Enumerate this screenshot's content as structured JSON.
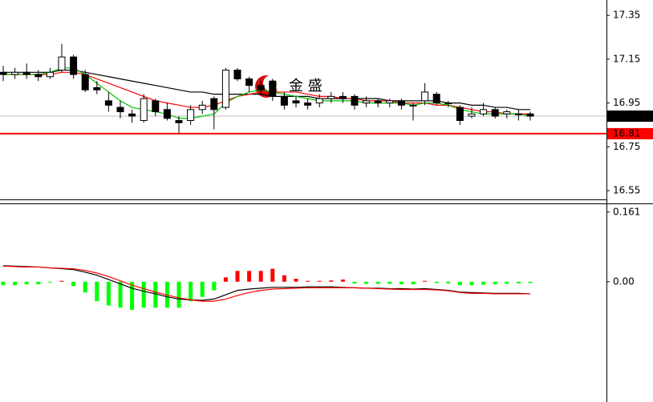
{
  "chart_data": [
    {
      "type": "candlestick",
      "open": [
        17.09,
        17.08,
        17.09,
        17.08,
        17.07,
        17.1,
        17.16,
        17.08,
        17.02,
        16.96,
        16.93,
        16.9,
        16.87,
        16.96,
        16.92,
        16.87,
        16.87,
        16.92,
        16.97,
        16.93,
        17.1,
        17.06,
        17.03,
        17.05,
        16.98,
        16.96,
        16.95,
        16.95,
        16.97,
        16.98,
        16.98,
        16.95,
        16.96,
        16.95,
        16.96,
        16.94,
        16.96,
        16.99,
        16.95,
        16.93,
        16.89,
        16.9,
        16.92,
        16.9,
        16.9,
        16.9
      ],
      "high": [
        17.12,
        17.11,
        17.13,
        17.1,
        17.11,
        17.22,
        17.17,
        17.1,
        17.05,
        17.0,
        16.96,
        16.92,
        16.99,
        16.97,
        16.95,
        16.89,
        16.94,
        16.96,
        16.98,
        17.11,
        17.11,
        17.07,
        17.05,
        17.06,
        17.0,
        16.98,
        16.97,
        16.99,
        17.0,
        17.0,
        16.99,
        16.98,
        16.97,
        16.97,
        16.97,
        16.95,
        17.04,
        17.0,
        16.96,
        16.94,
        16.93,
        16.95,
        16.93,
        16.92,
        16.92,
        16.91
      ],
      "low": [
        17.05,
        17.06,
        17.06,
        17.05,
        17.06,
        17.09,
        17.06,
        17.0,
        16.99,
        16.91,
        16.88,
        16.86,
        16.86,
        16.89,
        16.87,
        16.81,
        16.85,
        16.9,
        16.83,
        16.92,
        17.05,
        17.0,
        16.99,
        16.96,
        16.92,
        16.93,
        16.92,
        16.93,
        16.95,
        16.95,
        16.92,
        16.93,
        16.93,
        16.93,
        16.92,
        16.87,
        16.94,
        16.94,
        16.93,
        16.85,
        16.88,
        16.89,
        16.88,
        16.88,
        16.87,
        16.87
      ],
      "close": [
        17.08,
        17.09,
        17.08,
        17.07,
        17.09,
        17.16,
        17.08,
        17.01,
        17.01,
        16.94,
        16.91,
        16.89,
        16.97,
        16.91,
        16.88,
        16.86,
        16.92,
        16.94,
        16.92,
        17.1,
        17.06,
        17.03,
        17.01,
        16.98,
        16.94,
        16.95,
        16.94,
        16.97,
        16.98,
        16.97,
        16.94,
        16.96,
        16.95,
        16.96,
        16.94,
        16.94,
        17.0,
        16.95,
        16.95,
        16.87,
        16.9,
        16.92,
        16.89,
        16.91,
        16.9,
        16.89
      ],
      "up_color": "#ffffff",
      "down_color": "#000000",
      "lines": [
        {
          "color": "#000000",
          "values": [
            17.09,
            17.09,
            17.09,
            17.09,
            17.09,
            17.1,
            17.1,
            17.09,
            17.08,
            17.07,
            17.06,
            17.05,
            17.04,
            17.03,
            17.02,
            17.01,
            17.0,
            17.0,
            16.99,
            16.99,
            16.99,
            16.99,
            16.99,
            16.98,
            16.98,
            16.98,
            16.98,
            16.97,
            16.97,
            16.97,
            16.97,
            16.97,
            16.97,
            16.96,
            16.96,
            16.96,
            16.96,
            16.96,
            16.95,
            16.95,
            16.94,
            16.94,
            16.93,
            16.93,
            16.92,
            16.92
          ]
        },
        {
          "color": "#ff0000",
          "values": [
            17.08,
            17.08,
            17.08,
            17.08,
            17.08,
            17.09,
            17.09,
            17.08,
            17.06,
            17.04,
            17.02,
            17.0,
            16.98,
            16.96,
            16.95,
            16.94,
            16.93,
            16.93,
            16.94,
            16.96,
            16.98,
            16.99,
            17.0,
            17.0,
            17.0,
            17.0,
            16.99,
            16.98,
            16.98,
            16.97,
            16.97,
            16.96,
            16.96,
            16.96,
            16.95,
            16.95,
            16.95,
            16.94,
            16.94,
            16.93,
            16.92,
            16.91,
            16.91,
            16.9,
            16.9,
            16.9
          ]
        },
        {
          "color": "#00c000",
          "values": [
            17.08,
            17.08,
            17.08,
            17.08,
            17.09,
            17.11,
            17.11,
            17.08,
            17.04,
            17.0,
            16.96,
            16.93,
            16.92,
            16.91,
            16.9,
            16.88,
            16.88,
            16.89,
            16.9,
            16.95,
            16.98,
            17.0,
            17.01,
            17.0,
            16.99,
            16.98,
            16.97,
            16.96,
            16.96,
            16.96,
            16.96,
            16.95,
            16.95,
            16.95,
            16.95,
            16.94,
            16.95,
            16.95,
            16.94,
            16.92,
            16.91,
            16.9,
            16.9,
            16.9,
            16.9,
            16.89
          ]
        }
      ],
      "ylim": [
        16.51,
        17.42
      ],
      "yticks": [
        17.35,
        17.15,
        16.95,
        16.75,
        16.55
      ],
      "current_price": {
        "value": 16.89,
        "line_color": "#c0c0c0",
        "box_color": "#000000",
        "text_color": "#ffffff"
      },
      "level": {
        "value": 16.81,
        "color": "#ff0000",
        "text_color": "#ffffff"
      },
      "watermark": "金 盛"
    },
    {
      "type": "macd",
      "histogram": [
        -0.008,
        -0.008,
        -0.006,
        -0.006,
        -0.002,
        0.002,
        -0.01,
        -0.025,
        -0.045,
        -0.055,
        -0.06,
        -0.065,
        -0.06,
        -0.06,
        -0.06,
        -0.06,
        -0.045,
        -0.035,
        -0.02,
        0.01,
        0.025,
        0.025,
        0.025,
        0.03,
        0.015,
        0.007,
        0.002,
        0.002,
        0.003,
        0.005,
        -0.004,
        -0.005,
        -0.005,
        -0.005,
        -0.006,
        -0.006,
        0.002,
        -0.003,
        -0.004,
        -0.008,
        -0.008,
        -0.007,
        -0.006,
        -0.005,
        -0.004,
        -0.003
      ],
      "positive_color": "#ff0000",
      "negative_color": "#00ff00",
      "lines": [
        {
          "color": "#000000",
          "values": [
            0.037,
            0.036,
            0.035,
            0.034,
            0.032,
            0.03,
            0.028,
            0.022,
            0.015,
            0.005,
            -0.005,
            -0.015,
            -0.022,
            -0.028,
            -0.035,
            -0.04,
            -0.042,
            -0.043,
            -0.04,
            -0.03,
            -0.02,
            -0.017,
            -0.015,
            -0.013,
            -0.013,
            -0.013,
            -0.012,
            -0.012,
            -0.012,
            -0.013,
            -0.014,
            -0.015,
            -0.015,
            -0.016,
            -0.016,
            -0.017,
            -0.016,
            -0.018,
            -0.02,
            -0.024,
            -0.025,
            -0.026,
            -0.027,
            -0.027,
            -0.027,
            -0.028
          ]
        },
        {
          "color": "#ff0000",
          "values": [
            0.036,
            0.035,
            0.034,
            0.034,
            0.032,
            0.031,
            0.03,
            0.026,
            0.02,
            0.012,
            0.002,
            -0.008,
            -0.016,
            -0.024,
            -0.031,
            -0.037,
            -0.042,
            -0.045,
            -0.045,
            -0.04,
            -0.032,
            -0.025,
            -0.02,
            -0.017,
            -0.016,
            -0.015,
            -0.014,
            -0.014,
            -0.014,
            -0.014,
            -0.014,
            -0.015,
            -0.016,
            -0.017,
            -0.018,
            -0.018,
            -0.018,
            -0.019,
            -0.021,
            -0.025,
            -0.027,
            -0.027,
            -0.028,
            -0.028,
            -0.028,
            -0.028
          ]
        }
      ],
      "ylim": [
        -0.278,
        0.181
      ],
      "yticks": [
        0.161,
        {
          "value": 0,
          "label": "0.00"
        }
      ]
    }
  ]
}
